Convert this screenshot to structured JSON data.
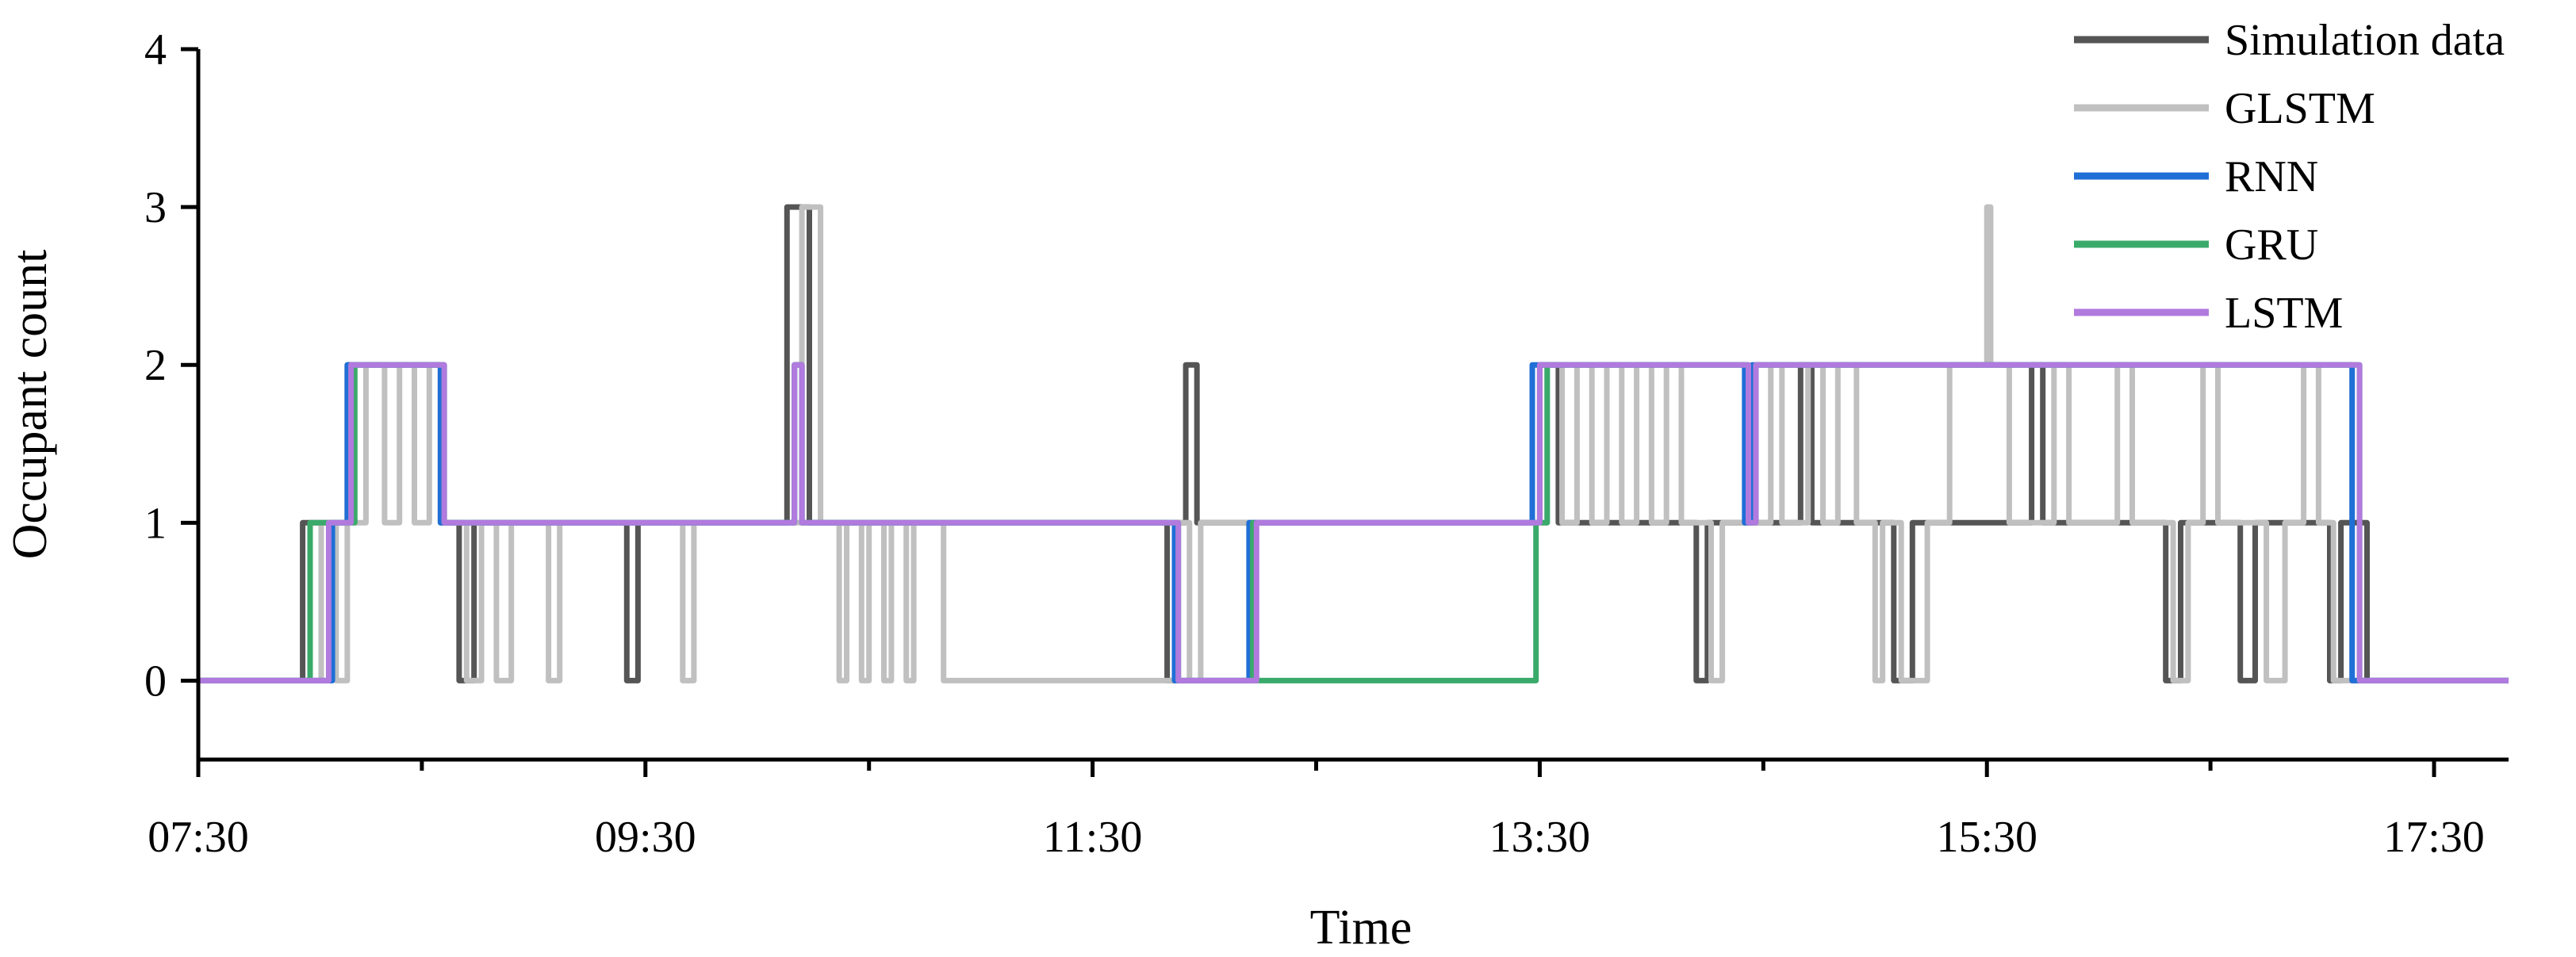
{
  "chart_data": {
    "type": "line",
    "title": "",
    "xlabel": "Time",
    "ylabel": "Occupant count",
    "xlim": [
      "07:30",
      "17:50"
    ],
    "ylim": [
      -0.5,
      4
    ],
    "x_ticks": [
      "07:30",
      "09:30",
      "11:30",
      "13:30",
      "15:30",
      "17:30"
    ],
    "y_ticks": [
      "0",
      "1",
      "2",
      "3",
      "4"
    ],
    "grid": false,
    "legend_position": "top-right",
    "series": [
      {
        "name": "Simulation data",
        "color": "#555555",
        "points": [
          [
            "07:30",
            0
          ],
          [
            "07:58",
            0
          ],
          [
            "07:58",
            1
          ],
          [
            "08:10",
            1
          ],
          [
            "08:10",
            2
          ],
          [
            "08:35",
            2
          ],
          [
            "08:35",
            1
          ],
          [
            "08:40",
            1
          ],
          [
            "08:40",
            0
          ],
          [
            "08:44",
            0
          ],
          [
            "08:44",
            1
          ],
          [
            "09:25",
            1
          ],
          [
            "09:25",
            0
          ],
          [
            "09:28",
            0
          ],
          [
            "09:28",
            1
          ],
          [
            "10:08",
            1
          ],
          [
            "10:08",
            3
          ],
          [
            "10:14",
            3
          ],
          [
            "10:14",
            1
          ],
          [
            "11:50",
            1
          ],
          [
            "11:50",
            0
          ],
          [
            "11:52",
            0
          ],
          [
            "11:52",
            1
          ],
          [
            "11:55",
            1
          ],
          [
            "11:55",
            2
          ],
          [
            "11:58",
            2
          ],
          [
            "11:58",
            1
          ],
          [
            "13:30",
            1
          ],
          [
            "13:30",
            2
          ],
          [
            "13:35",
            2
          ],
          [
            "13:35",
            1
          ],
          [
            "14:12",
            1
          ],
          [
            "14:12",
            0
          ],
          [
            "14:15",
            0
          ],
          [
            "14:15",
            1
          ],
          [
            "14:40",
            1
          ],
          [
            "14:40",
            2
          ],
          [
            "14:43",
            2
          ],
          [
            "14:43",
            1
          ],
          [
            "15:05",
            1
          ],
          [
            "15:05",
            0
          ],
          [
            "15:10",
            0
          ],
          [
            "15:10",
            1
          ],
          [
            "15:42",
            1
          ],
          [
            "15:42",
            2
          ],
          [
            "15:45",
            2
          ],
          [
            "15:45",
            1
          ],
          [
            "16:18",
            1
          ],
          [
            "16:18",
            0
          ],
          [
            "16:22",
            0
          ],
          [
            "16:22",
            1
          ],
          [
            "16:38",
            1
          ],
          [
            "16:38",
            0
          ],
          [
            "16:42",
            0
          ],
          [
            "16:42",
            1
          ],
          [
            "17:02",
            1
          ],
          [
            "17:02",
            0
          ],
          [
            "17:05",
            0
          ],
          [
            "17:05",
            1
          ],
          [
            "17:12",
            1
          ],
          [
            "17:12",
            0
          ],
          [
            "17:50",
            0
          ]
        ]
      },
      {
        "name": "GLSTM",
        "color": "#c0c0c0",
        "points": [
          [
            "07:30",
            0
          ],
          [
            "08:03",
            0
          ],
          [
            "08:03",
            1
          ],
          [
            "08:07",
            1
          ],
          [
            "08:07",
            0
          ],
          [
            "08:10",
            0
          ],
          [
            "08:10",
            1
          ],
          [
            "08:15",
            1
          ],
          [
            "08:15",
            2
          ],
          [
            "08:20",
            2
          ],
          [
            "08:20",
            1
          ],
          [
            "08:24",
            1
          ],
          [
            "08:24",
            2
          ],
          [
            "08:28",
            2
          ],
          [
            "08:28",
            1
          ],
          [
            "08:32",
            1
          ],
          [
            "08:32",
            2
          ],
          [
            "08:36",
            2
          ],
          [
            "08:36",
            1
          ],
          [
            "08:42",
            1
          ],
          [
            "08:42",
            0
          ],
          [
            "08:46",
            0
          ],
          [
            "08:46",
            1
          ],
          [
            "08:50",
            1
          ],
          [
            "08:50",
            0
          ],
          [
            "08:54",
            0
          ],
          [
            "08:54",
            1
          ],
          [
            "09:04",
            1
          ],
          [
            "09:04",
            0
          ],
          [
            "09:07",
            0
          ],
          [
            "09:07",
            1
          ],
          [
            "09:40",
            1
          ],
          [
            "09:40",
            0
          ],
          [
            "09:43",
            0
          ],
          [
            "09:43",
            1
          ],
          [
            "10:12",
            1
          ],
          [
            "10:12",
            3
          ],
          [
            "10:17",
            3
          ],
          [
            "10:17",
            1
          ],
          [
            "10:22",
            1
          ],
          [
            "10:22",
            0
          ],
          [
            "10:24",
            0
          ],
          [
            "10:24",
            1
          ],
          [
            "10:28",
            1
          ],
          [
            "10:28",
            0
          ],
          [
            "10:30",
            0
          ],
          [
            "10:30",
            1
          ],
          [
            "10:34",
            1
          ],
          [
            "10:34",
            0
          ],
          [
            "10:36",
            0
          ],
          [
            "10:36",
            1
          ],
          [
            "10:40",
            1
          ],
          [
            "10:40",
            0
          ],
          [
            "10:42",
            0
          ],
          [
            "10:42",
            1
          ],
          [
            "10:50",
            1
          ],
          [
            "10:50",
            0
          ],
          [
            "11:52",
            0
          ],
          [
            "11:52",
            1
          ],
          [
            "11:56",
            1
          ],
          [
            "11:56",
            0
          ],
          [
            "11:59",
            0
          ],
          [
            "11:59",
            1
          ],
          [
            "13:32",
            1
          ],
          [
            "13:32",
            2
          ],
          [
            "13:36",
            2
          ],
          [
            "13:36",
            1
          ],
          [
            "13:40",
            1
          ],
          [
            "13:40",
            2
          ],
          [
            "13:44",
            2
          ],
          [
            "13:44",
            1
          ],
          [
            "13:48",
            1
          ],
          [
            "13:48",
            2
          ],
          [
            "13:52",
            2
          ],
          [
            "13:52",
            1
          ],
          [
            "13:56",
            1
          ],
          [
            "13:56",
            2
          ],
          [
            "14:00",
            2
          ],
          [
            "14:00",
            1
          ],
          [
            "14:04",
            1
          ],
          [
            "14:04",
            2
          ],
          [
            "14:08",
            2
          ],
          [
            "14:08",
            1
          ],
          [
            "14:16",
            1
          ],
          [
            "14:16",
            0
          ],
          [
            "14:19",
            0
          ],
          [
            "14:19",
            1
          ],
          [
            "14:32",
            1
          ],
          [
            "14:32",
            2
          ],
          [
            "14:35",
            2
          ],
          [
            "14:35",
            1
          ],
          [
            "14:42",
            1
          ],
          [
            "14:42",
            2
          ],
          [
            "14:46",
            2
          ],
          [
            "14:46",
            1
          ],
          [
            "14:50",
            1
          ],
          [
            "14:50",
            2
          ],
          [
            "14:55",
            2
          ],
          [
            "14:55",
            1
          ],
          [
            "15:00",
            1
          ],
          [
            "15:00",
            0
          ],
          [
            "15:02",
            0
          ],
          [
            "15:02",
            1
          ],
          [
            "15:07",
            1
          ],
          [
            "15:07",
            0
          ],
          [
            "15:14",
            0
          ],
          [
            "15:14",
            1
          ],
          [
            "15:20",
            1
          ],
          [
            "15:20",
            2
          ],
          [
            "15:30",
            2
          ],
          [
            "15:30",
            3
          ],
          [
            "15:31",
            3
          ],
          [
            "15:31",
            2
          ],
          [
            "15:36",
            2
          ],
          [
            "15:36",
            1
          ],
          [
            "15:48",
            1
          ],
          [
            "15:48",
            2
          ],
          [
            "15:52",
            2
          ],
          [
            "15:52",
            1
          ],
          [
            "16:05",
            1
          ],
          [
            "16:05",
            2
          ],
          [
            "16:09",
            2
          ],
          [
            "16:09",
            1
          ],
          [
            "16:20",
            1
          ],
          [
            "16:20",
            0
          ],
          [
            "16:24",
            0
          ],
          [
            "16:24",
            1
          ],
          [
            "16:28",
            1
          ],
          [
            "16:28",
            2
          ],
          [
            "16:32",
            2
          ],
          [
            "16:32",
            1
          ],
          [
            "16:45",
            1
          ],
          [
            "16:45",
            0
          ],
          [
            "16:50",
            0
          ],
          [
            "16:50",
            1
          ],
          [
            "16:55",
            1
          ],
          [
            "16:55",
            2
          ],
          [
            "16:59",
            2
          ],
          [
            "16:59",
            1
          ],
          [
            "17:03",
            1
          ],
          [
            "17:03",
            0
          ],
          [
            "17:50",
            0
          ]
        ]
      },
      {
        "name": "RNN",
        "color": "#1f6fd6",
        "points": [
          [
            "07:30",
            0
          ],
          [
            "08:06",
            0
          ],
          [
            "08:06",
            1
          ],
          [
            "08:10",
            1
          ],
          [
            "08:10",
            2
          ],
          [
            "08:35",
            2
          ],
          [
            "08:35",
            1
          ],
          [
            "10:10",
            1
          ],
          [
            "10:10",
            2
          ],
          [
            "10:12",
            2
          ],
          [
            "10:12",
            1
          ],
          [
            "11:52",
            1
          ],
          [
            "11:52",
            0
          ],
          [
            "12:12",
            0
          ],
          [
            "12:12",
            1
          ],
          [
            "13:28",
            1
          ],
          [
            "13:28",
            2
          ],
          [
            "14:25",
            2
          ],
          [
            "14:25",
            1
          ],
          [
            "14:27",
            1
          ],
          [
            "14:27",
            2
          ],
          [
            "17:08",
            2
          ],
          [
            "17:08",
            0
          ],
          [
            "17:50",
            0
          ]
        ]
      },
      {
        "name": "GRU",
        "color": "#3aaa6a",
        "points": [
          [
            "07:30",
            0
          ],
          [
            "08:00",
            0
          ],
          [
            "08:00",
            1
          ],
          [
            "08:12",
            1
          ],
          [
            "08:12",
            2
          ],
          [
            "08:36",
            2
          ],
          [
            "08:36",
            1
          ],
          [
            "10:10",
            1
          ],
          [
            "10:10",
            2
          ],
          [
            "10:12",
            2
          ],
          [
            "10:12",
            1
          ],
          [
            "11:53",
            1
          ],
          [
            "11:53",
            0
          ],
          [
            "12:13",
            0
          ],
          [
            "12:13",
            1
          ],
          [
            "12:13",
            0
          ],
          [
            "13:29",
            0
          ],
          [
            "13:29",
            1
          ],
          [
            "13:32",
            1
          ],
          [
            "13:32",
            2
          ],
          [
            "14:26",
            2
          ],
          [
            "14:26",
            1
          ],
          [
            "14:28",
            1
          ],
          [
            "14:28",
            2
          ],
          [
            "17:10",
            2
          ],
          [
            "17:10",
            0
          ],
          [
            "17:50",
            0
          ]
        ]
      },
      {
        "name": "LSTM",
        "color": "#b07ade",
        "points": [
          [
            "07:30",
            0
          ],
          [
            "08:05",
            0
          ],
          [
            "08:05",
            1
          ],
          [
            "08:11",
            1
          ],
          [
            "08:11",
            2
          ],
          [
            "08:36",
            2
          ],
          [
            "08:36",
            1
          ],
          [
            "10:10",
            1
          ],
          [
            "10:10",
            2
          ],
          [
            "10:12",
            2
          ],
          [
            "10:12",
            1
          ],
          [
            "11:53",
            1
          ],
          [
            "11:53",
            0
          ],
          [
            "12:14",
            0
          ],
          [
            "12:14",
            1
          ],
          [
            "13:30",
            1
          ],
          [
            "13:30",
            2
          ],
          [
            "14:26",
            2
          ],
          [
            "14:26",
            1
          ],
          [
            "14:28",
            1
          ],
          [
            "14:28",
            2
          ],
          [
            "17:10",
            2
          ],
          [
            "17:10",
            0
          ],
          [
            "17:50",
            0
          ]
        ]
      }
    ]
  }
}
